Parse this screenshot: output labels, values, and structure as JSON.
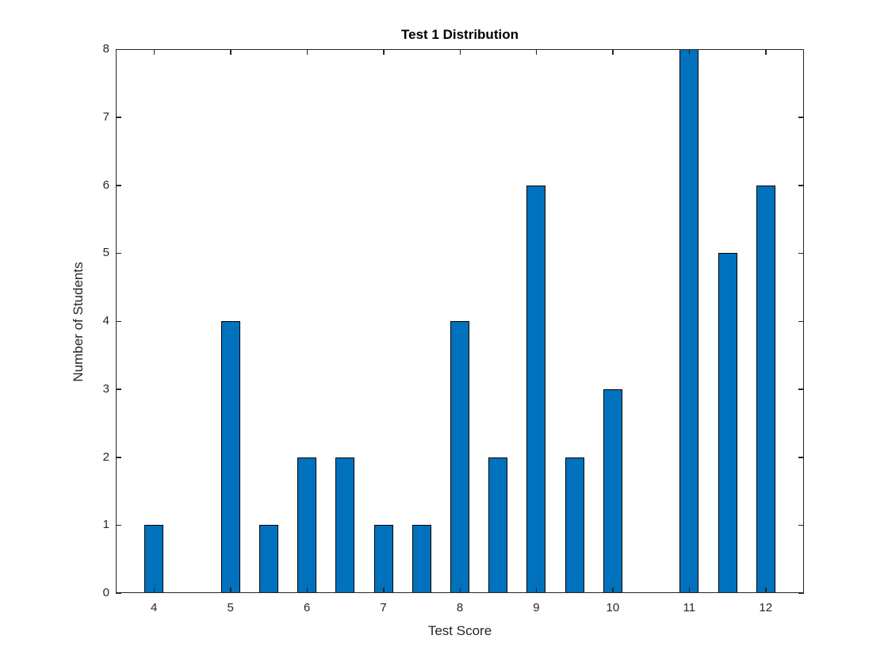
{
  "chart_data": {
    "type": "bar",
    "title": "Test 1 Distribution",
    "xlabel": "Test Score",
    "ylabel": "Number of Students",
    "x": [
      4,
      4.5,
      5,
      5.5,
      6,
      6.5,
      7,
      7.5,
      8,
      8.5,
      9,
      9.5,
      10,
      10.5,
      11,
      11.5,
      12
    ],
    "values": [
      1,
      0,
      4,
      1,
      2,
      2,
      1,
      1,
      4,
      2,
      6,
      2,
      3,
      0,
      8,
      5,
      6
    ],
    "xlim": [
      3.5,
      12.5
    ],
    "ylim": [
      0,
      8
    ],
    "xticks": [
      4,
      5,
      6,
      7,
      8,
      9,
      10,
      11,
      12
    ],
    "yticks": [
      0,
      1,
      2,
      3,
      4,
      5,
      6,
      7,
      8
    ],
    "bar_width": 0.25,
    "grid": false,
    "colors": {
      "bar_fill": "#0072BD",
      "bar_edge": "#000000",
      "axis": "#262626",
      "tick_label": "#262626",
      "title_text": "#000000"
    }
  }
}
